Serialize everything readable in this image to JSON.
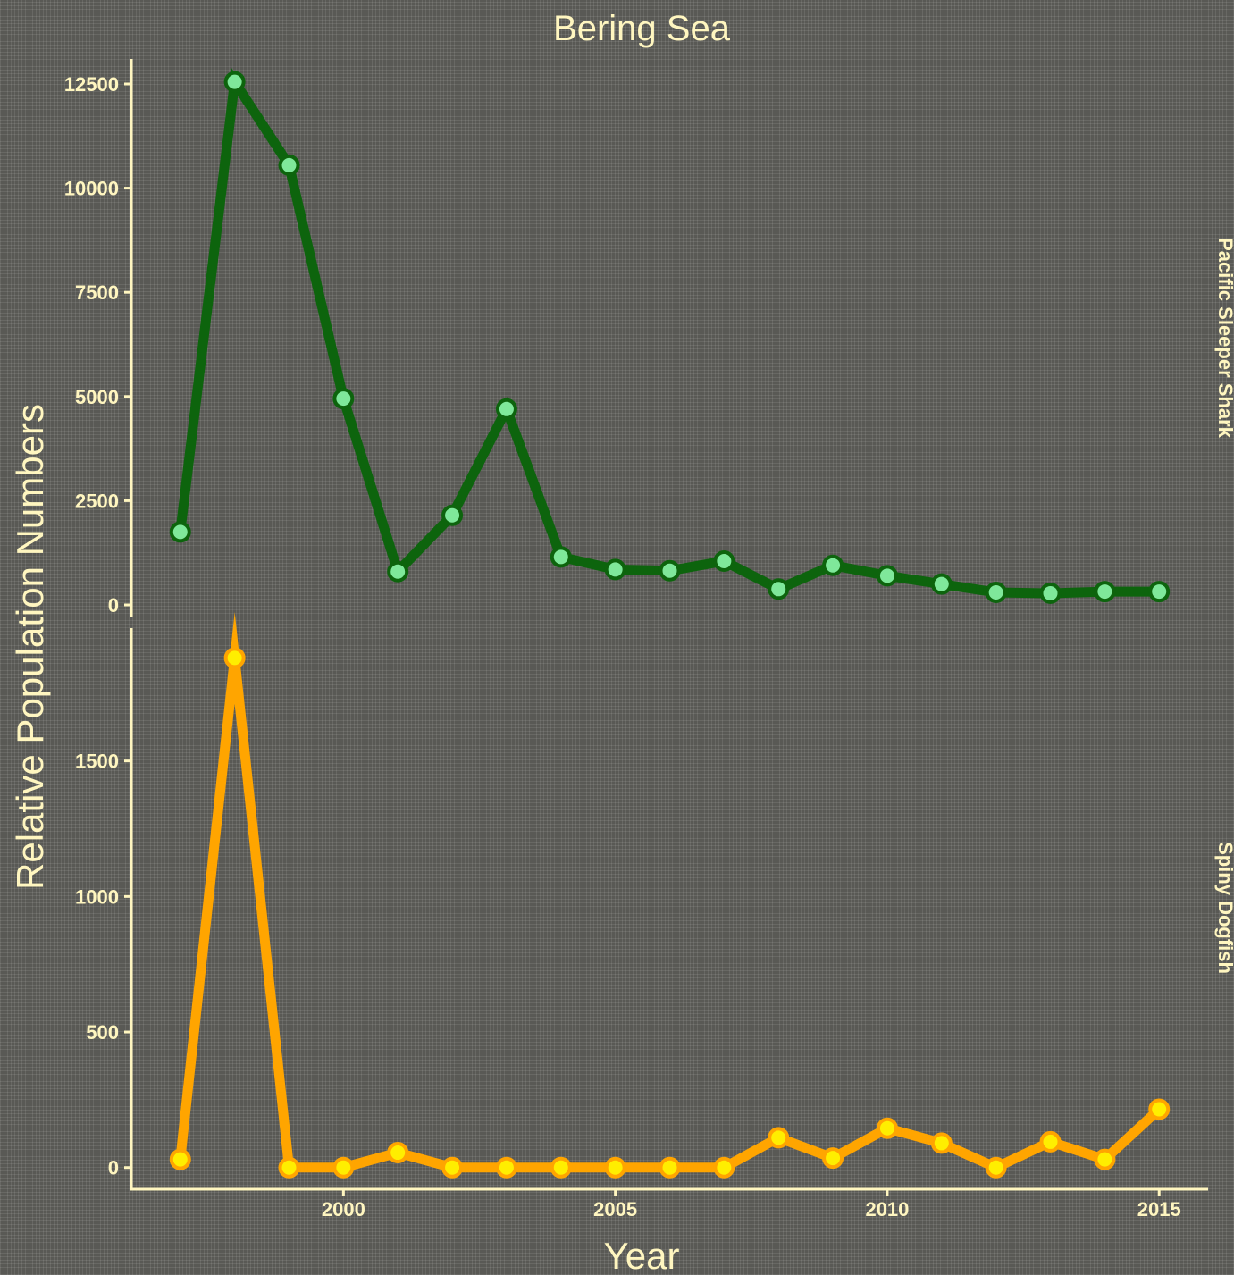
{
  "chart_data": {
    "type": "line",
    "title": "Bering Sea",
    "xlabel": "Year",
    "ylabel": "Relative Population Numbers",
    "x": [
      1997,
      1998,
      1999,
      2000,
      2001,
      2002,
      2003,
      2004,
      2005,
      2006,
      2007,
      2008,
      2009,
      2010,
      2011,
      2012,
      2013,
      2014,
      2015
    ],
    "xlim": [
      1996.1,
      2015.9
    ],
    "x_ticks": [
      2000,
      2005,
      2010,
      2015
    ],
    "grid": false,
    "legend": "none",
    "panels": [
      {
        "strip_label": "Pacific Sleeper Shark",
        "line_color": "#0d640d",
        "point_fill": "#7fe89a",
        "ylim": [
          -300,
          13100
        ],
        "y_ticks": [
          0,
          2500,
          5000,
          7500,
          10000,
          12500
        ],
        "series": [
          {
            "values": [
              1750,
              12550,
              10550,
              4950,
              800,
              2150,
              4700,
              1150,
              850,
              820,
              1050,
              380,
              950,
              700,
              500,
              300,
              280,
              320,
              320
            ]
          }
        ]
      },
      {
        "strip_label": "Spiny Dogfish",
        "line_color": "#ffa500",
        "point_fill": "#ffee00",
        "ylim": [
          -80,
          1990
        ],
        "y_ticks": [
          0,
          500,
          1000,
          1500
        ],
        "series": [
          {
            "values": [
              30,
              1880,
              0,
              0,
              55,
              0,
              0,
              0,
              0,
              0,
              0,
              110,
              35,
              145,
              90,
              0,
              95,
              30,
              215
            ]
          }
        ]
      }
    ]
  }
}
